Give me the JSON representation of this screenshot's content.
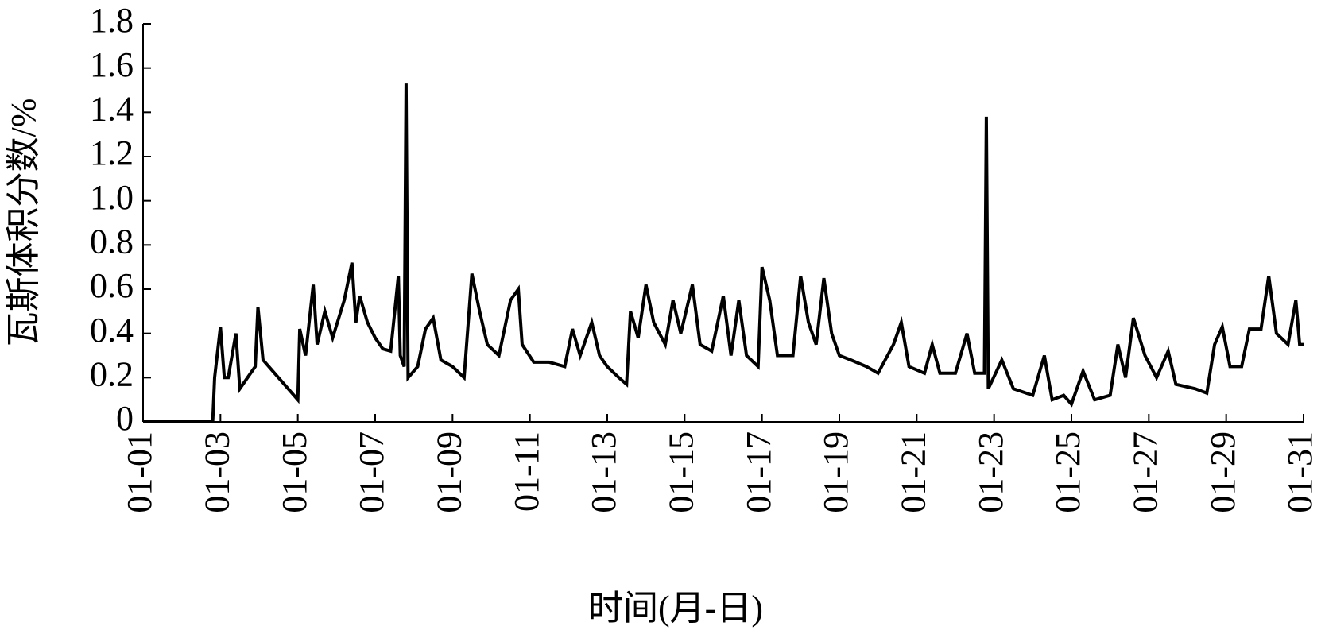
{
  "chart_data": {
    "type": "line",
    "xlabel": "时间(月-日)",
    "ylabel": "瓦斯体积分数/%",
    "color": "#000000",
    "xlim": [
      1,
      31
    ],
    "ylim": [
      0,
      1.8
    ],
    "xticks": [
      {
        "value": 1,
        "label": "01-01"
      },
      {
        "value": 3,
        "label": "01-03"
      },
      {
        "value": 5,
        "label": "01-05"
      },
      {
        "value": 7,
        "label": "01-07"
      },
      {
        "value": 9,
        "label": "01-09"
      },
      {
        "value": 11,
        "label": "01-11"
      },
      {
        "value": 13,
        "label": "01-13"
      },
      {
        "value": 15,
        "label": "01-15"
      },
      {
        "value": 17,
        "label": "01-17"
      },
      {
        "value": 19,
        "label": "01-19"
      },
      {
        "value": 21,
        "label": "01-21"
      },
      {
        "value": 23,
        "label": "01-23"
      },
      {
        "value": 25,
        "label": "01-25"
      },
      {
        "value": 27,
        "label": "01-27"
      },
      {
        "value": 29,
        "label": "01-29"
      },
      {
        "value": 31,
        "label": "01-31"
      }
    ],
    "yticks": [
      0,
      0.2,
      0.4,
      0.6,
      0.8,
      {
        "value": 1,
        "label": "1.0"
      },
      1.2,
      1.4,
      1.6,
      1.8
    ],
    "x": [
      1,
      2.8,
      2.85,
      3.0,
      3.1,
      3.2,
      3.4,
      3.5,
      3.7,
      3.9,
      3.97,
      4.1,
      4.5,
      4.9,
      5.0,
      5.05,
      5.2,
      5.4,
      5.5,
      5.7,
      5.9,
      6.2,
      6.4,
      6.5,
      6.6,
      6.8,
      7.0,
      7.2,
      7.4,
      7.6,
      7.65,
      7.75,
      7.8,
      7.85,
      8.1,
      8.3,
      8.5,
      8.7,
      9.0,
      9.3,
      9.5,
      9.7,
      9.9,
      10.2,
      10.5,
      10.7,
      10.8,
      11.1,
      11.5,
      11.9,
      12.1,
      12.3,
      12.6,
      12.8,
      13.0,
      13.3,
      13.5,
      13.6,
      13.8,
      14.0,
      14.2,
      14.5,
      14.7,
      14.9,
      15.2,
      15.4,
      15.7,
      16.0,
      16.2,
      16.4,
      16.6,
      16.9,
      17.0,
      17.2,
      17.4,
      17.8,
      18.0,
      18.2,
      18.4,
      18.6,
      18.8,
      19.0,
      19.3,
      19.7,
      20.0,
      20.4,
      20.6,
      20.8,
      21.2,
      21.4,
      21.6,
      22.0,
      22.3,
      22.5,
      22.75,
      22.8,
      22.85,
      23.2,
      23.5,
      24.0,
      24.3,
      24.5,
      24.8,
      25.0,
      25.3,
      25.6,
      26.0,
      26.2,
      26.4,
      26.6,
      26.9,
      27.2,
      27.5,
      27.7,
      28.2,
      28.5,
      28.7,
      28.9,
      29.1,
      29.4,
      29.6,
      29.9,
      30.1,
      30.3,
      30.6,
      30.8,
      30.9,
      31.0
    ],
    "values": [
      0,
      0,
      0.2,
      0.43,
      0.2,
      0.2,
      0.4,
      0.15,
      0.2,
      0.25,
      0.52,
      0.28,
      0.2,
      0.12,
      0.1,
      0.42,
      0.3,
      0.62,
      0.35,
      0.5,
      0.38,
      0.55,
      0.72,
      0.45,
      0.57,
      0.45,
      0.38,
      0.33,
      0.32,
      0.66,
      0.3,
      0.25,
      1.53,
      0.2,
      0.25,
      0.42,
      0.47,
      0.28,
      0.25,
      0.2,
      0.67,
      0.5,
      0.35,
      0.3,
      0.55,
      0.6,
      0.35,
      0.27,
      0.27,
      0.25,
      0.42,
      0.3,
      0.45,
      0.3,
      0.25,
      0.2,
      0.17,
      0.5,
      0.38,
      0.62,
      0.45,
      0.35,
      0.55,
      0.4,
      0.62,
      0.35,
      0.32,
      0.57,
      0.3,
      0.55,
      0.3,
      0.25,
      0.7,
      0.55,
      0.3,
      0.3,
      0.66,
      0.45,
      0.35,
      0.65,
      0.4,
      0.3,
      0.28,
      0.25,
      0.22,
      0.35,
      0.45,
      0.25,
      0.22,
      0.35,
      0.22,
      0.22,
      0.4,
      0.22,
      0.22,
      1.38,
      0.15,
      0.28,
      0.15,
      0.12,
      0.3,
      0.1,
      0.12,
      0.08,
      0.23,
      0.1,
      0.12,
      0.35,
      0.2,
      0.47,
      0.3,
      0.2,
      0.32,
      0.17,
      0.15,
      0.13,
      0.35,
      0.43,
      0.25,
      0.25,
      0.42,
      0.42,
      0.66,
      0.4,
      0.35,
      0.55,
      0.35,
      0.35
    ]
  }
}
